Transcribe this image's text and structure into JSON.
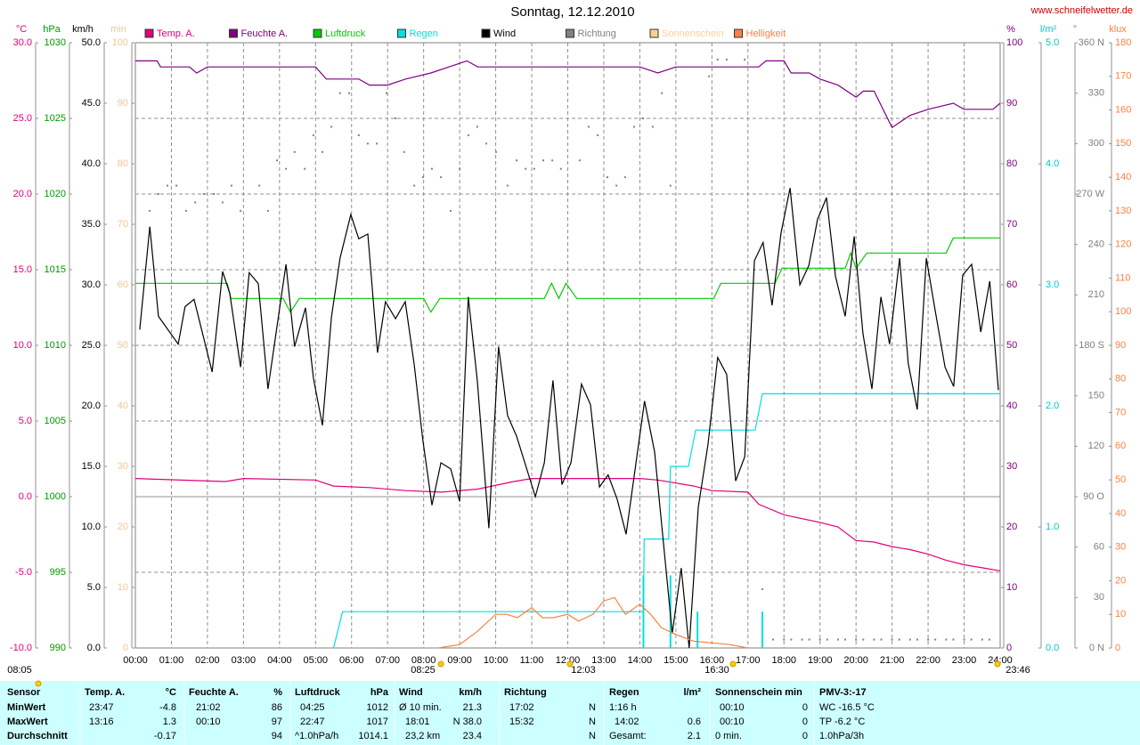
{
  "chart_data": {
    "type": "line",
    "title": "Sonntag, 12.12.2010",
    "source": "www.schneifelwetter.de",
    "grid": true,
    "xlim": [
      0,
      24
    ],
    "xticks": [
      {
        "value": 0,
        "label": "00:00"
      },
      {
        "value": 1,
        "label": "01:00"
      },
      {
        "value": 2,
        "label": "02:00"
      },
      {
        "value": 3,
        "label": "03:00"
      },
      {
        "value": 4,
        "label": "04:00"
      },
      {
        "value": 5,
        "label": "05:00"
      },
      {
        "value": 6,
        "label": "06:00"
      },
      {
        "value": 7,
        "label": "07:00"
      },
      {
        "value": 8,
        "label": "08:00"
      },
      {
        "value": 9,
        "label": "09:00"
      },
      {
        "value": 10,
        "label": "10:00"
      },
      {
        "value": 11,
        "label": "11:00"
      },
      {
        "value": 12,
        "label": "12:00"
      },
      {
        "value": 13,
        "label": "13:00"
      },
      {
        "value": 14,
        "label": "14:00"
      },
      {
        "value": 15,
        "label": "15:00"
      },
      {
        "value": 16,
        "label": "16:00"
      },
      {
        "value": 17,
        "label": "17:00"
      },
      {
        "value": 18,
        "label": "18:00"
      },
      {
        "value": 19,
        "label": "19:00"
      },
      {
        "value": 20,
        "label": "20:00"
      },
      {
        "value": 21,
        "label": "21:00"
      },
      {
        "value": 22,
        "label": "22:00"
      },
      {
        "value": 23,
        "label": "23:00"
      },
      {
        "value": 24,
        "label": "24:00"
      }
    ],
    "annotations": [
      "08:25",
      "12:03",
      "16:30",
      "08:05",
      "23:46"
    ],
    "axes": [
      {
        "unit": "°C",
        "color": "#e0007a",
        "lim": [
          -10,
          30
        ],
        "ticks": [
          {
            "value": 30,
            "label": "30.0"
          },
          {
            "value": 25,
            "label": "25.0"
          },
          {
            "value": 20,
            "label": "20.0"
          },
          {
            "value": 15,
            "label": "15.0"
          },
          {
            "value": 10,
            "label": "10.0"
          },
          {
            "value": 5,
            "label": "5.0"
          },
          {
            "value": 0,
            "label": "0.0"
          },
          {
            "value": -5,
            "label": "-5.0"
          },
          {
            "value": -10,
            "label": "-10.0"
          }
        ]
      },
      {
        "unit": "hPa",
        "color": "#009900",
        "lim": [
          990,
          1030
        ],
        "ticks": [
          1030,
          1025,
          1020,
          1015,
          1010,
          1005,
          1000,
          995,
          990
        ]
      },
      {
        "unit": "km/h",
        "color": "#000000",
        "lim": [
          0,
          50
        ],
        "ticks": [
          {
            "value": 50,
            "label": "50.0"
          },
          {
            "value": 45,
            "label": "45.0"
          },
          {
            "value": 40,
            "label": "40.0"
          },
          {
            "value": 35,
            "label": "35.0"
          },
          {
            "value": 30,
            "label": "30.0"
          },
          {
            "value": 25,
            "label": "25.0"
          },
          {
            "value": 20,
            "label": "20.0"
          },
          {
            "value": 15,
            "label": "15.0"
          },
          {
            "value": 10,
            "label": "10.0"
          },
          {
            "value": 5,
            "label": "5.0"
          },
          {
            "value": 0,
            "label": "0.0"
          }
        ]
      },
      {
        "unit": "min",
        "color": "#f0c890",
        "lim": [
          0,
          100
        ],
        "ticks": [
          100,
          90,
          80,
          70,
          60,
          50,
          40,
          30,
          20,
          10,
          0
        ]
      },
      {
        "unit": "%",
        "color": "#800080",
        "lim": [
          0,
          100
        ],
        "ticks": [
          100,
          90,
          80,
          70,
          60,
          50,
          40,
          30,
          20,
          10,
          0
        ]
      },
      {
        "unit": "l/m²",
        "color": "#00cccc",
        "lim": [
          0,
          5
        ],
        "ticks": [
          {
            "value": 5,
            "label": "5.0"
          },
          {
            "value": 4,
            "label": "4.0"
          },
          {
            "value": 3,
            "label": "3.0"
          },
          {
            "value": 2,
            "label": "2.0"
          },
          {
            "value": 1,
            "label": "1.0"
          },
          {
            "value": 0,
            "label": "0.0"
          }
        ]
      },
      {
        "unit": "°",
        "color": "#808080",
        "lim": [
          0,
          360
        ],
        "ticks": [
          {
            "value": 360,
            "label": "360 N"
          },
          330,
          300,
          {
            "value": 270,
            "label": "270 W"
          },
          240,
          210,
          {
            "value": 180,
            "label": "180 S"
          },
          150,
          120,
          {
            "value": 90,
            "label": "90 O"
          },
          60,
          30,
          {
            "value": 0,
            "label": "0 N"
          }
        ]
      },
      {
        "unit": "klux",
        "color": "#ff8040",
        "lim": [
          0,
          180
        ],
        "ticks": [
          180,
          170,
          160,
          150,
          140,
          130,
          120,
          110,
          100,
          90,
          80,
          70,
          60,
          50,
          40,
          30,
          20,
          10,
          0
        ]
      }
    ],
    "series": [
      {
        "name": "Temp. A.",
        "color": "#e0007a",
        "axis": 0,
        "type": "line",
        "x": [
          0,
          2.5,
          3,
          5,
          5.5,
          6.5,
          7.5,
          8.5,
          9.5,
          10.5,
          11,
          12,
          13,
          14,
          14.5,
          15.5,
          16,
          17,
          17.3,
          18,
          19,
          19.5,
          20,
          20.5,
          21,
          21.5,
          22,
          22.5,
          23,
          23.5,
          24
        ],
        "values": [
          1.2,
          1.0,
          1.2,
          1.1,
          0.7,
          0.6,
          0.4,
          0.3,
          0.5,
          1.0,
          1.2,
          1.2,
          1.2,
          1.2,
          1.1,
          0.7,
          0.4,
          0.3,
          -0.5,
          -1.2,
          -1.7,
          -2.0,
          -2.9,
          -3.0,
          -3.3,
          -3.5,
          -3.8,
          -4.2,
          -4.5,
          -4.7,
          -4.9
        ]
      },
      {
        "name": "Feuchte A.",
        "color": "#800080",
        "axis": 4,
        "type": "line",
        "x": [
          0,
          0.6,
          0.7,
          1.5,
          1.7,
          2,
          5,
          5.3,
          6.2,
          6.5,
          7,
          7.5,
          8.2,
          8.7,
          9.2,
          9.5,
          14,
          14.5,
          15,
          17.3,
          17.5,
          18,
          18.2,
          18.7,
          19,
          19.5,
          20,
          20.2,
          20.5,
          21,
          21.5,
          22,
          22.7,
          23,
          23.8,
          24
        ],
        "values": [
          97,
          97,
          96,
          96,
          95,
          96,
          96,
          94,
          94,
          93,
          93,
          94,
          95,
          96,
          97,
          96,
          96,
          95,
          96,
          96,
          97,
          97,
          95,
          95,
          94,
          93,
          91,
          92,
          92,
          86,
          88,
          89,
          90,
          89,
          89,
          90
        ]
      },
      {
        "name": "Luftdruck",
        "color": "#00cc00",
        "axis": 1,
        "type": "line",
        "x": [
          0,
          2.55,
          2.65,
          4.1,
          4.3,
          4.55,
          8.0,
          8.2,
          8.45,
          11.35,
          11.55,
          11.75,
          11.95,
          12.25,
          16.05,
          16.25,
          17.75,
          17.95,
          19.7,
          19.85,
          20.0,
          20.3,
          22.5,
          22.7,
          24
        ],
        "values": [
          1014.1,
          1014.1,
          1013.1,
          1013.1,
          1012.2,
          1013.1,
          1013.1,
          1012.2,
          1013.1,
          1013.1,
          1014.1,
          1013.1,
          1014.1,
          1013.1,
          1013.1,
          1014.1,
          1014.1,
          1015.1,
          1015.1,
          1016.1,
          1015.1,
          1016.1,
          1016.1,
          1017.1,
          1017.1
        ]
      },
      {
        "name": "Regen",
        "color": "#00e0e0",
        "axis": 5,
        "type": "line",
        "x": [
          5.5,
          5.75,
          14.1,
          14.12,
          14.8,
          14.85,
          15.35,
          15.55,
          17.2,
          17.4,
          24
        ],
        "values": [
          0,
          0.3,
          0.3,
          0.9,
          0.9,
          1.5,
          1.5,
          1.8,
          1.8,
          2.1,
          2.1
        ],
        "rate_x": [
          14.1,
          14.85,
          15.6,
          17.4
        ],
        "rate_values": [
          0.6,
          0.6,
          0.3,
          0.3
        ]
      },
      {
        "name": "Wind",
        "color": "#000000",
        "axis": 2,
        "type": "line",
        "x": [
          0.12,
          0.4,
          0.64,
          1.19,
          1.38,
          1.63,
          2.13,
          2.42,
          2.62,
          2.92,
          3.16,
          3.41,
          3.68,
          4.18,
          4.42,
          4.72,
          4.94,
          5.19,
          5.44,
          5.68,
          5.98,
          6.2,
          6.45,
          6.72,
          6.94,
          7.22,
          7.49,
          7.74,
          7.98,
          8.23,
          8.48,
          8.75,
          9.0,
          9.24,
          9.49,
          9.81,
          10.08,
          10.33,
          10.58,
          11.1,
          11.35,
          11.59,
          11.84,
          12.09,
          12.38,
          12.63,
          12.88,
          13.12,
          13.37,
          13.62,
          14.13,
          14.41,
          14.9,
          15.15,
          15.37,
          15.62,
          15.89,
          16.16,
          16.41,
          16.66,
          16.91,
          17.18,
          17.42,
          17.67,
          17.92,
          18.17,
          18.44,
          18.69,
          18.93,
          19.18,
          19.43,
          19.7,
          19.95,
          20.19,
          20.44,
          20.69,
          20.93,
          21.21,
          21.45,
          21.7,
          21.95,
          22.2,
          22.47,
          22.71,
          22.96,
          23.21,
          23.46,
          23.71,
          23.95
        ],
        "values": [
          26.3,
          34.8,
          27.4,
          25.1,
          28.2,
          28.8,
          22.8,
          31.1,
          29.3,
          23.2,
          31.0,
          30.1,
          21.4,
          31.7,
          24.9,
          28.1,
          22.3,
          18.4,
          27.3,
          32.2,
          35.8,
          33.8,
          34.2,
          24.4,
          28.6,
          27.2,
          28.6,
          23.4,
          17.1,
          11.8,
          15.3,
          14.8,
          12.1,
          29.0,
          22.1,
          9.9,
          24.9,
          19.2,
          17.5,
          12.5,
          15.3,
          22.1,
          13.5,
          15.3,
          21.8,
          20.1,
          13.3,
          14.3,
          12.3,
          9.4,
          20.4,
          16.2,
          1.2,
          6.6,
          0,
          11.6,
          16.8,
          24.0,
          22.6,
          13.8,
          15.8,
          32.0,
          33.5,
          28.3,
          34.3,
          38.0,
          30.0,
          31.6,
          35.4,
          37.2,
          30.7,
          27.4,
          34.0,
          26.0,
          21.4,
          29.0,
          25.1,
          32.2,
          23.5,
          19.7,
          32.2,
          27.8,
          23.2,
          21.6,
          30.8,
          31.7,
          26.1,
          30.3,
          21.3
        ]
      },
      {
        "name": "Richtung",
        "color": "#808080",
        "axis": 6,
        "type": "scatter",
        "x": [
          0.4,
          0.64,
          0.89,
          1.14,
          1.41,
          1.66,
          1.9,
          2.18,
          2.42,
          2.67,
          2.92,
          3.44,
          3.68,
          3.93,
          4.18,
          4.42,
          4.7,
          4.94,
          5.19,
          5.44,
          5.68,
          5.93,
          6.2,
          6.45,
          6.7,
          6.97,
          7.22,
          7.46,
          7.74,
          7.98,
          8.23,
          8.48,
          8.75,
          9.0,
          9.24,
          9.49,
          9.74,
          10.01,
          10.33,
          10.58,
          10.83,
          11.07,
          11.32,
          11.57,
          11.81,
          12.33,
          12.58,
          12.83,
          13.1,
          13.35,
          13.59,
          13.84,
          14.09,
          14.36,
          14.61,
          14.85,
          15.92,
          16.16,
          16.41,
          16.91,
          17.4,
          17.7,
          18.0,
          18.2,
          18.5,
          18.7,
          19.0,
          19.2,
          19.5,
          19.7,
          20.0,
          20.2,
          20.5,
          20.7,
          21.0,
          21.2,
          21.5,
          21.7,
          22.0,
          22.2,
          22.5,
          22.7,
          23.0,
          23.2,
          23.5,
          23.7
        ],
        "values": [
          260,
          270,
          275,
          275,
          260,
          265,
          270,
          270,
          265,
          275,
          260,
          275,
          260,
          290,
          285,
          295,
          285,
          305,
          295,
          310,
          330,
          330,
          305,
          300,
          300,
          330,
          315,
          295,
          275,
          280,
          285,
          280,
          260,
          285,
          305,
          310,
          300,
          295,
          275,
          290,
          285,
          285,
          290,
          290,
          285,
          290,
          310,
          305,
          280,
          275,
          280,
          310,
          315,
          310,
          330,
          275,
          340,
          350,
          350,
          350,
          35,
          5,
          5,
          5,
          5,
          5,
          5,
          5,
          5,
          5,
          5,
          5,
          5,
          5,
          5,
          5,
          5,
          5,
          5,
          5,
          5,
          5,
          5,
          5,
          5,
          5
        ]
      },
      {
        "name": "Sonnenschein",
        "color": "#ffd090",
        "axis": 3,
        "type": "line",
        "x": [],
        "values": []
      },
      {
        "name": "Helligkeit",
        "color": "#ff8040",
        "axis": 7,
        "type": "line",
        "x": [
          8.4,
          9,
          9.5,
          10,
          10.3,
          10.6,
          11,
          11.3,
          11.6,
          12,
          12.3,
          12.7,
          13,
          13.3,
          13.6,
          14,
          14.3,
          14.6,
          15,
          15.5,
          16.5,
          17
        ],
        "values": [
          0,
          1,
          5,
          10,
          10,
          9,
          12,
          9,
          9,
          10,
          8,
          10,
          14,
          15,
          10,
          13,
          10,
          6,
          4,
          2,
          1,
          0
        ]
      }
    ]
  },
  "table": {
    "rows": [
      [
        "Sensor",
        "Temp. A.",
        "°C",
        "Feuchte A.",
        "%",
        "Luftdruck",
        "hPa",
        "Wind",
        "km/h",
        "Richtung",
        "Regen",
        "l/m²",
        "Sonnenschein min",
        "PMV-3:-17"
      ],
      [
        "MinWert",
        "23:47",
        "-4.8",
        "21:02",
        "86",
        "04:25",
        "1012",
        "Ø 10 min.",
        "21.3",
        "17:02",
        "N",
        "1:16 h",
        "00:10",
        "0",
        "WC -16.5 °C"
      ],
      [
        "MaxWert",
        "13:16",
        "1.3",
        "00:10",
        "97",
        "22:47",
        "1017",
        "18:01",
        "N 38.0",
        "15:32",
        "N",
        "14:02",
        "0.6",
        "00:10",
        "0",
        "TP -6.2 °C"
      ],
      [
        "Durchschnitt",
        "-0.17",
        "94",
        "^1.0hPa/h",
        "1014.1",
        "23,2 km",
        "23.4",
        "N",
        "Gesamt:",
        "2.1",
        "0 min.",
        "0",
        "1.0hPa/3h"
      ]
    ]
  }
}
